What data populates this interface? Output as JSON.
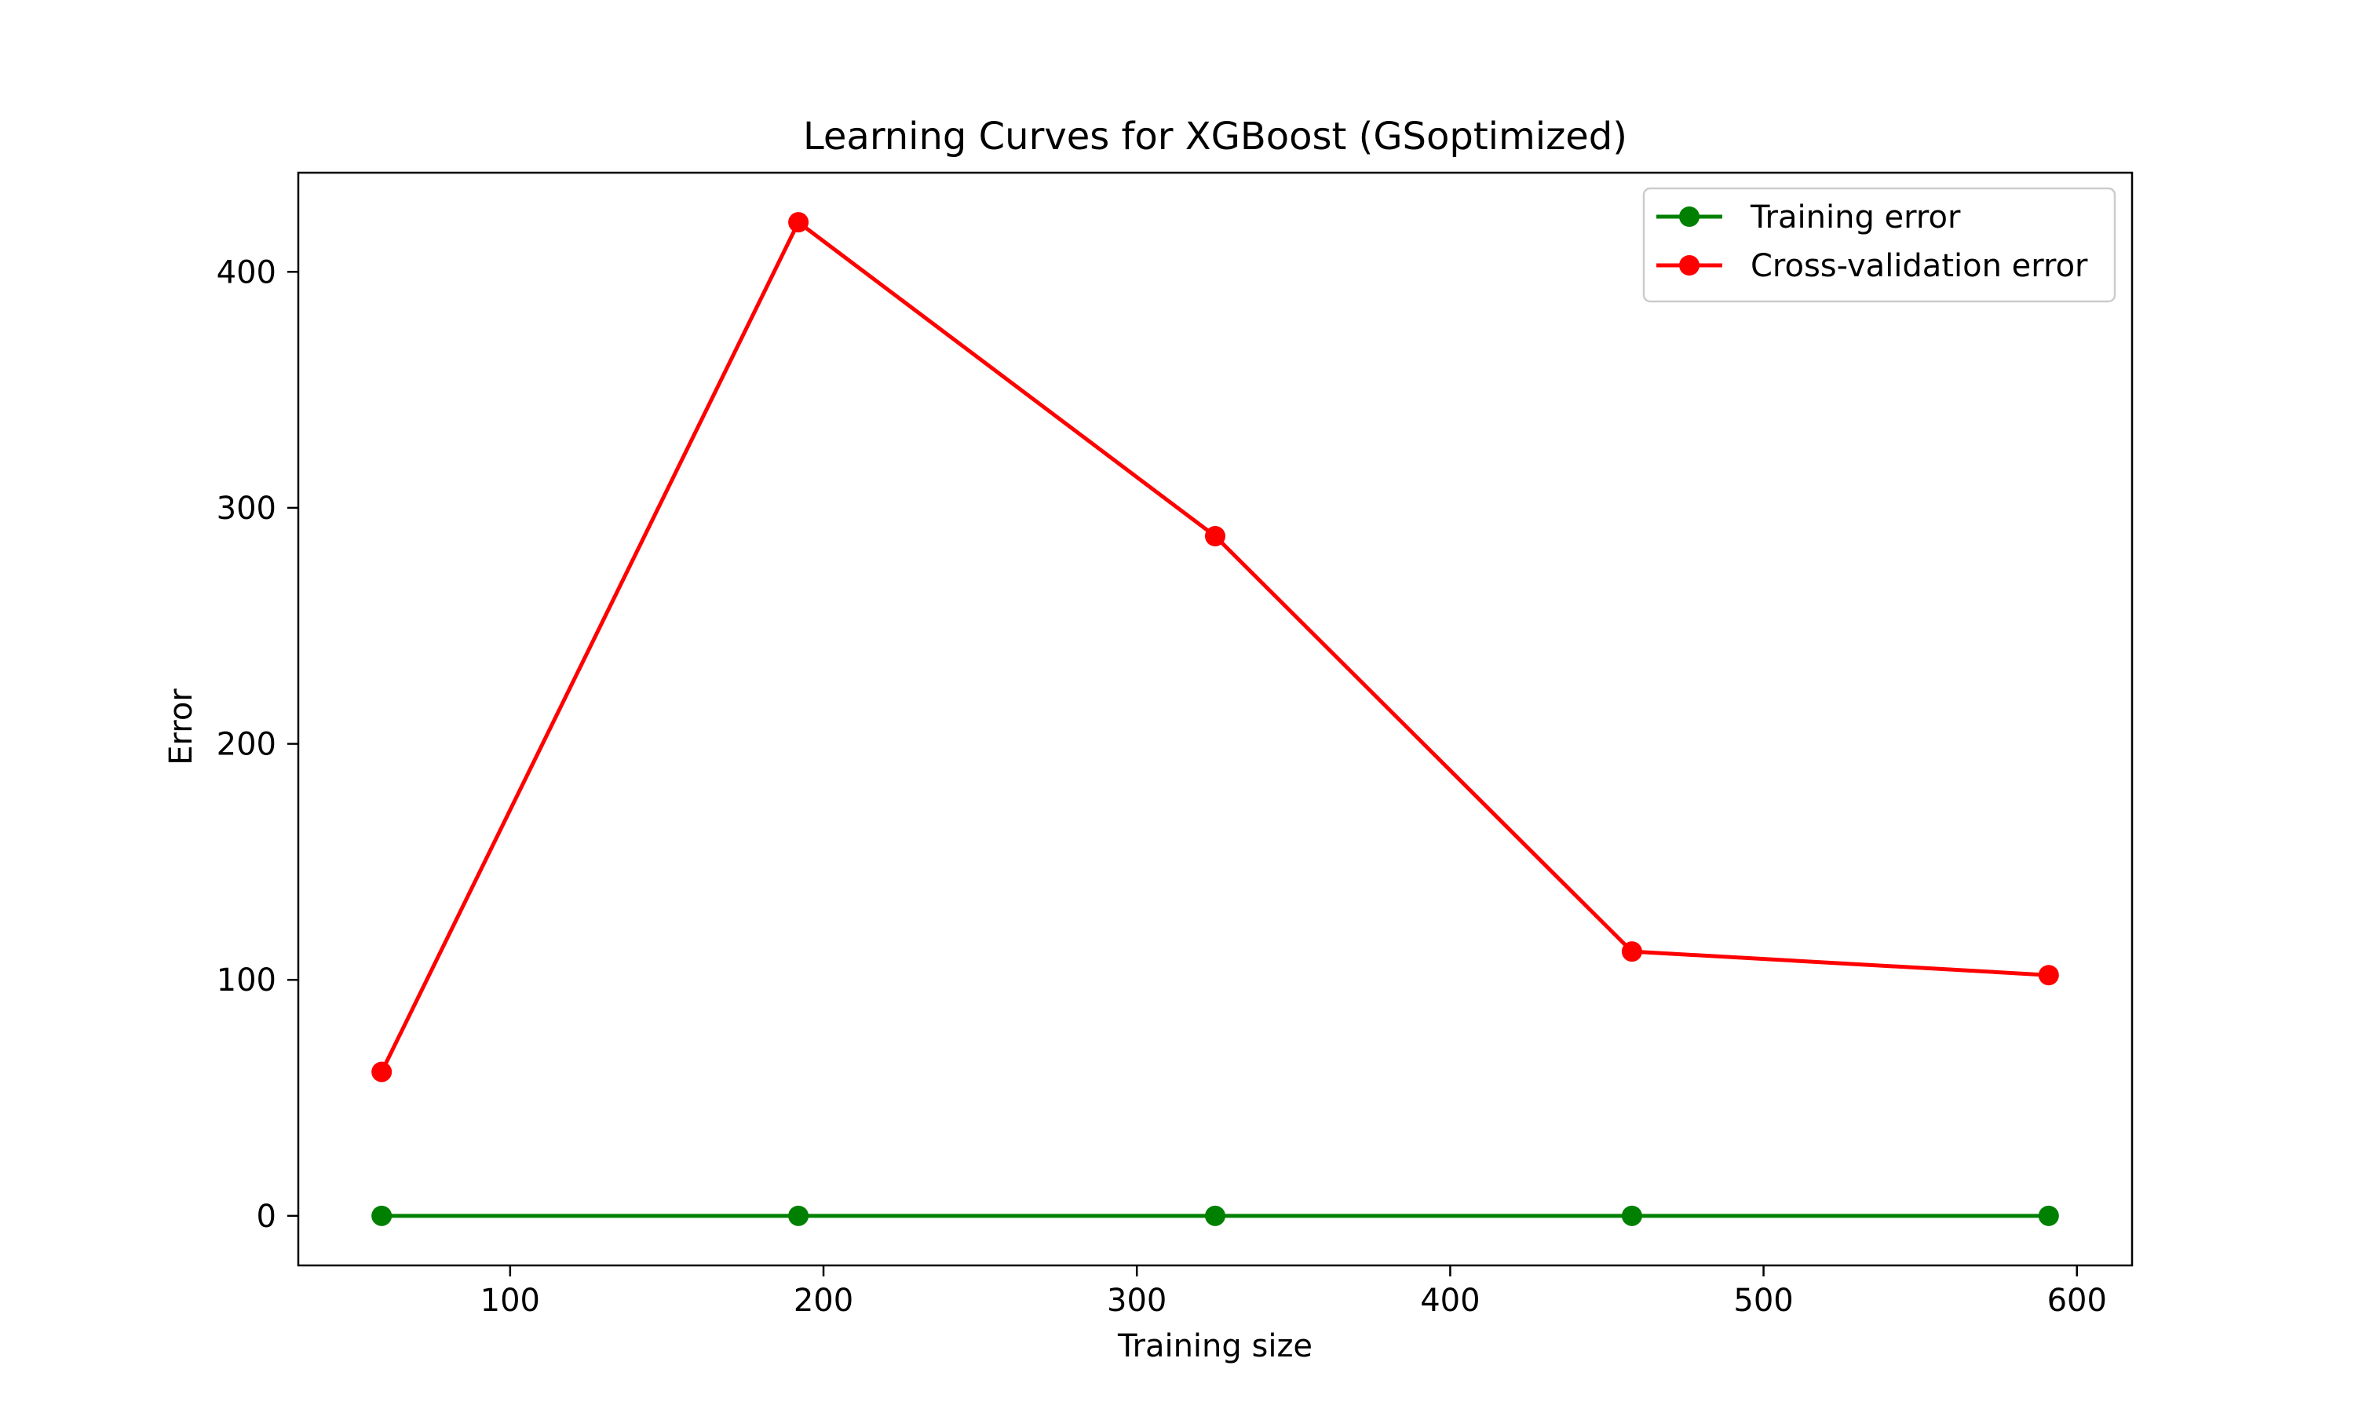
{
  "chart_data": {
    "type": "line",
    "title": "Learning Curves for XGBoost (GSoptimized)",
    "xlabel": "Training size",
    "ylabel": "Error",
    "x": [
      59,
      192,
      325,
      458,
      591
    ],
    "series": [
      {
        "name": "Training error",
        "color": "#008000",
        "marker": "circle",
        "values": [
          0,
          0,
          0,
          0,
          0
        ]
      },
      {
        "name": "Cross-validation error",
        "color": "#ff0000",
        "marker": "circle",
        "values": [
          61,
          421,
          288,
          112,
          102
        ]
      }
    ],
    "xlim": [
      32.4,
      617.6
    ],
    "ylim": [
      -21,
      442
    ],
    "xticks": [
      100,
      200,
      300,
      400,
      500,
      600
    ],
    "xtick_labels": [
      "100",
      "200",
      "300",
      "400",
      "500",
      "600"
    ],
    "yticks": [
      0,
      100,
      200,
      300,
      400
    ],
    "ytick_labels": [
      "0",
      "100",
      "200",
      "300",
      "400"
    ],
    "grid": false,
    "legend_position": "top-right"
  }
}
